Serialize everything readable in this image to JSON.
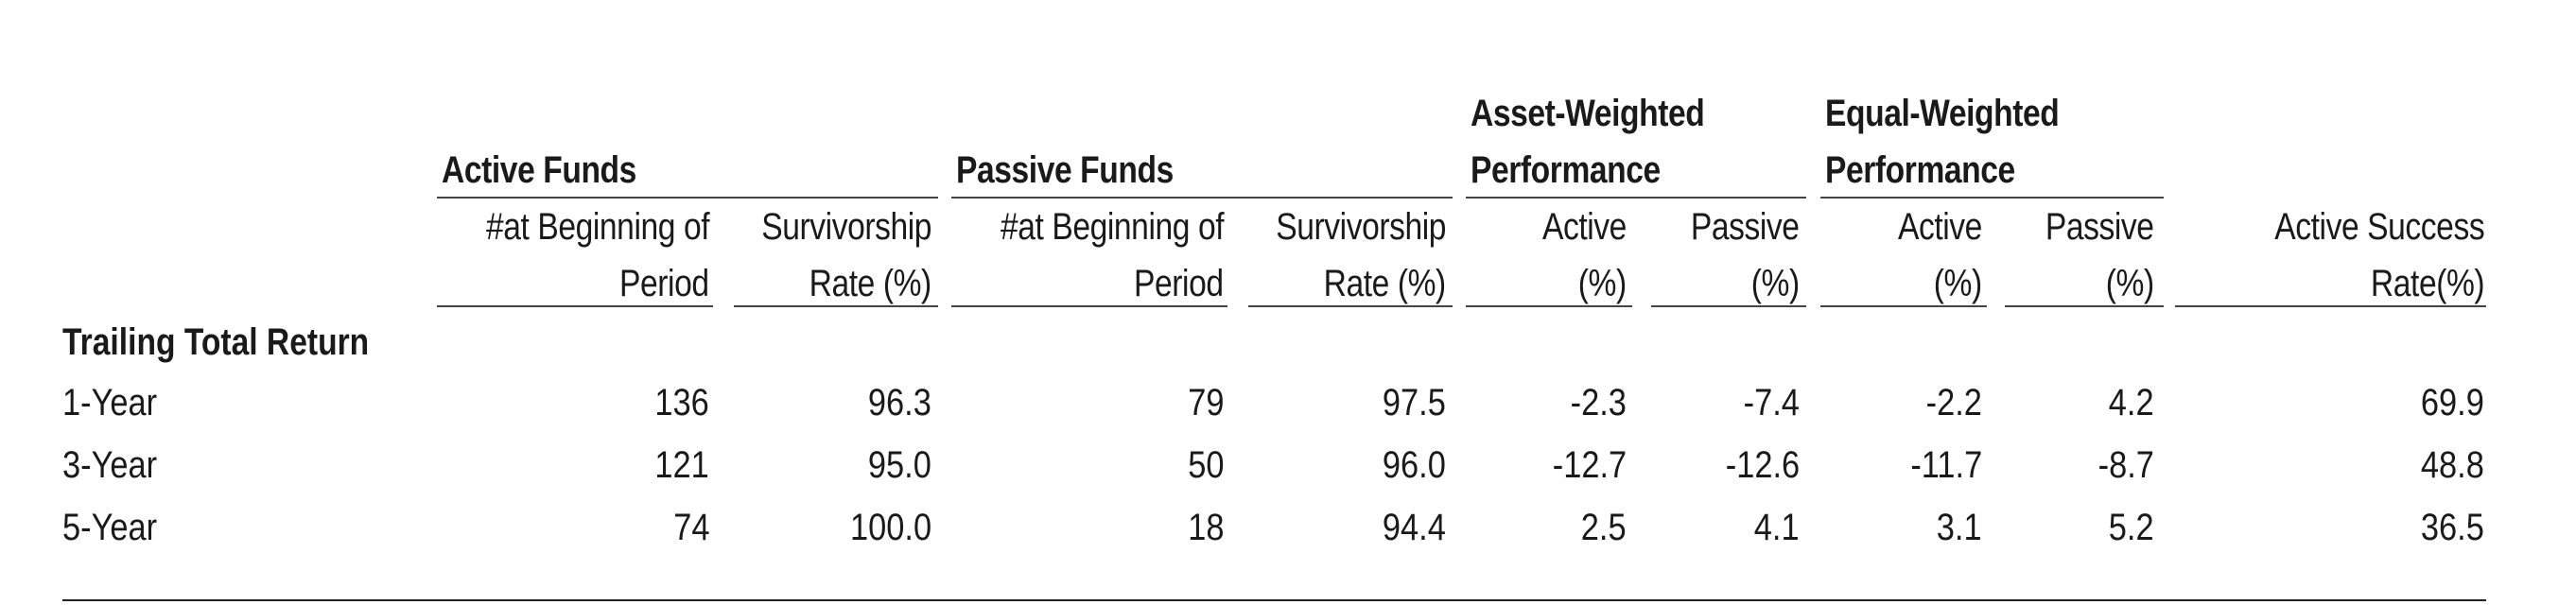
{
  "groups": {
    "active_funds": "Active Funds",
    "passive_funds": "Passive Funds",
    "asset_weighted_1": "Asset-Weighted",
    "asset_weighted_2": "Performance",
    "equal_weighted_1": "Equal-Weighted",
    "equal_weighted_2": "Performance"
  },
  "subheaders": {
    "a_count_1": "#at Beginning of",
    "a_count_2": "Period",
    "a_surv_1": "Survivorship",
    "a_surv_2": "Rate (%)",
    "p_count_1": "#at Beginning of",
    "p_count_2": "Period",
    "p_surv_1": "Survivorship",
    "p_surv_2": "Rate (%)",
    "aw_active_1": "Active",
    "aw_active_2": "(%)",
    "aw_passive_1": "Passive",
    "aw_passive_2": "(%)",
    "ew_active_1": "Active",
    "ew_active_2": "(%)",
    "ew_passive_1": "Passive",
    "ew_passive_2": "(%)",
    "success_1": "Active Success",
    "success_2": "Rate(%)"
  },
  "section_title": "Trailing Total Return",
  "rows": [
    {
      "label": "1-Year",
      "values": [
        "136",
        "96.3",
        "79",
        "97.5",
        "-2.3",
        "-7.4",
        "-2.2",
        "4.2",
        "69.9"
      ]
    },
    {
      "label": "3-Year",
      "values": [
        "121",
        "95.0",
        "50",
        "96.0",
        "-12.7",
        "-12.6",
        "-11.7",
        "-8.7",
        "48.8"
      ]
    },
    {
      "label": "5-Year",
      "values": [
        "74",
        "100.0",
        "18",
        "94.4",
        "2.5",
        "4.1",
        "3.1",
        "5.2",
        "36.5"
      ]
    }
  ]
}
